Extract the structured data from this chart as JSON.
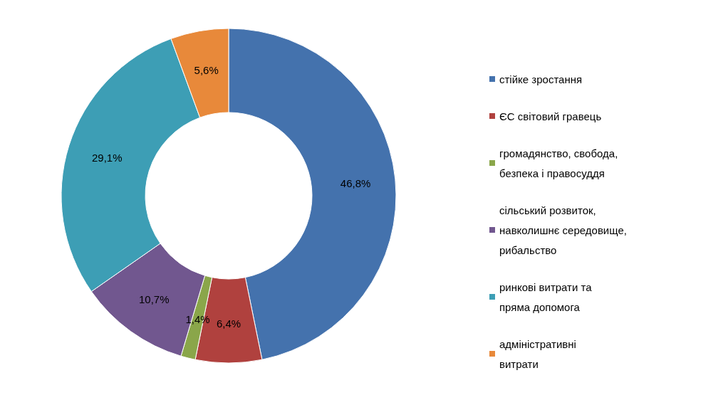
{
  "chart_data": {
    "type": "donut",
    "categories": [
      "стійке зростання",
      "ЄС світовий гравець",
      "громадянство, свобода, безпека і правосуддя",
      "сільський розвиток, навколишнє середовище, рибальство",
      "ринкові витрати та пряма допомога",
      "адміністративні витрати"
    ],
    "values": [
      46.8,
      6.4,
      1.4,
      10.7,
      29.1,
      5.6
    ],
    "value_labels": [
      "46,8%",
      "6,4%",
      "1,4%",
      "10,7%",
      "29,1%",
      "5,6%"
    ],
    "colors": [
      "#4472ad",
      "#b0413e",
      "#8aa64a",
      "#71578f",
      "#3d9eb5",
      "#e8893a"
    ],
    "legend": "right"
  }
}
